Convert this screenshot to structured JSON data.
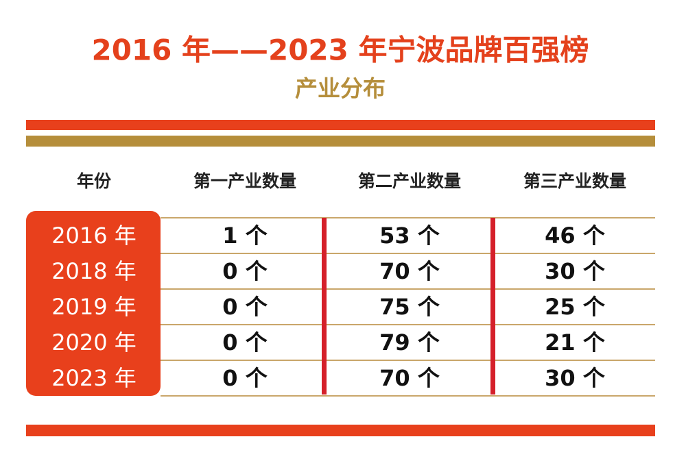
{
  "header": {
    "title": "2016 年——2023 年宁波品牌百强榜",
    "subtitle": "产业分布"
  },
  "table": {
    "columns": [
      "年份",
      "第一产业数量",
      "第二产业数量",
      "第三产业数量"
    ],
    "rows": [
      [
        "2016 年",
        "1 个",
        "53 个",
        "46 个"
      ],
      [
        "2018 年",
        "0 个",
        "70 个",
        "30 个"
      ],
      [
        "2019 年",
        "0 个",
        "75 个",
        "25 个"
      ],
      [
        "2020 年",
        "0 个",
        "79 个",
        "21 个"
      ],
      [
        "2023 年",
        "0 个",
        "70 个",
        "30 个"
      ]
    ]
  }
}
